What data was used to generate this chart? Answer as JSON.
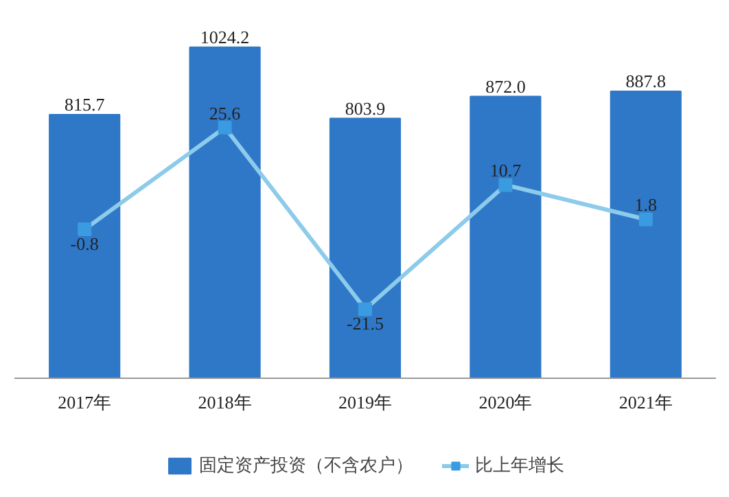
{
  "chart_data": {
    "type": "bar",
    "categories": [
      "2017年",
      "2018年",
      "2019年",
      "2020年",
      "2021年"
    ],
    "series": [
      {
        "name": "固定资产投资（不含农户）",
        "color": "#2f78c8",
        "values": [
          815.7,
          1024.2,
          803.9,
          872.0,
          887.8
        ],
        "value_labels": [
          "815.7",
          "1024.2",
          "803.9",
          "872.0",
          "887.8"
        ]
      },
      {
        "name": "比上年增长",
        "type": "line",
        "axis": "y2",
        "color": "#8dcbea",
        "values": [
          -0.8,
          25.6,
          -21.5,
          10.7,
          1.8
        ],
        "value_labels": [
          "-0.8",
          "25.6",
          "-21.5",
          "10.7",
          "1.8"
        ]
      }
    ],
    "tick_labels": "x",
    "marker": "square",
    "line_style": "solid",
    "grid": false,
    "legend": "bottom"
  }
}
